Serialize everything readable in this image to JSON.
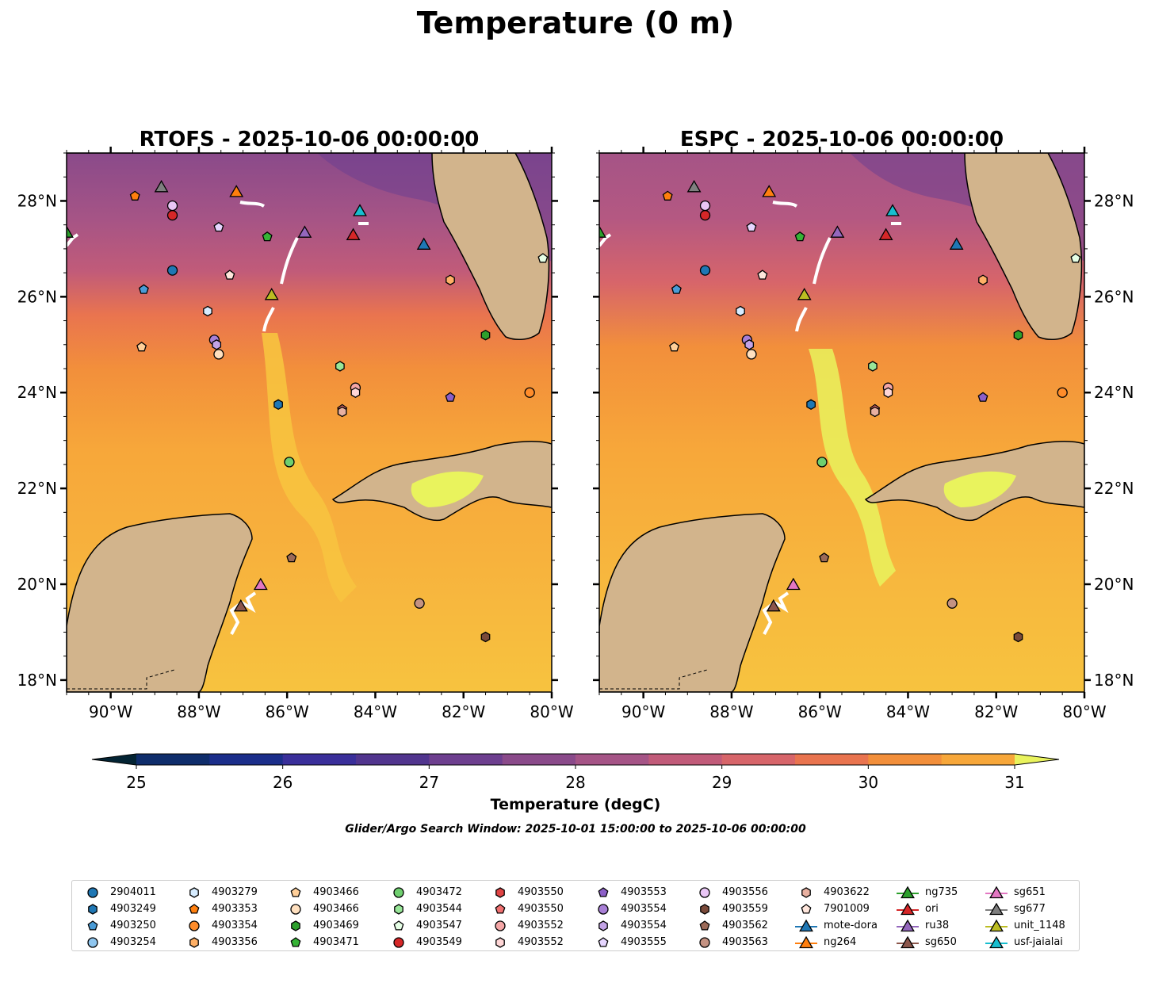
{
  "figure_title": "Temperature (0 m)",
  "search_window_text": "Glider/Argo Search Window: 2025-10-01 15:00:00 to 2025-10-06 00:00:00",
  "chart_data": {
    "type": "heatmap",
    "variable": "Temperature (0 m)",
    "colorbar": {
      "label": "Temperature (degC)",
      "min": 25,
      "max": 31,
      "step": 0.5,
      "ticks": [
        25,
        26,
        27,
        28,
        29,
        30,
        31
      ],
      "extend": "both",
      "colors": [
        "#032333",
        "#0f2d6b",
        "#1b2e8a",
        "#3a2f9a",
        "#51358e",
        "#6d3f8f",
        "#8a4a8a",
        "#a55486",
        "#c15b79",
        "#d7656a",
        "#e9744f",
        "#f28f3b",
        "#f7a73a",
        "#f7c33f",
        "#e9f35d"
      ]
    },
    "maps": [
      {
        "title": "RTOFS - 2025-10-06 00:00:00",
        "model": "RTOFS"
      },
      {
        "title": "ESPC - 2025-10-06 00:00:00",
        "model": "ESPC"
      }
    ],
    "lon_range": [
      -91.0,
      -80.0
    ],
    "lat_range": [
      17.75,
      29.0
    ],
    "lon_ticks": [
      -90,
      -88,
      -86,
      -84,
      -82,
      -80
    ],
    "lat_ticks": [
      18,
      20,
      22,
      24,
      26,
      28
    ],
    "lon_tick_labels": [
      "90°W",
      "88°W",
      "86°W",
      "84°W",
      "82°W",
      "80°W"
    ],
    "lat_tick_labels": [
      "18°N",
      "20°N",
      "22°N",
      "24°N",
      "26°N",
      "28°N"
    ],
    "argo_floats": [
      {
        "id": "2904011",
        "lon": -88.6,
        "lat": 26.55,
        "shape": "circle",
        "color": "#1f77b4"
      },
      {
        "id": "4903249",
        "lon": -86.2,
        "lat": 23.75,
        "shape": "hexagon",
        "color": "#1f77b4"
      },
      {
        "id": "4903250",
        "lon": -89.25,
        "lat": 26.15,
        "shape": "pentagon",
        "color": "#4a9bd6"
      },
      {
        "id": "4903279",
        "lon": -87.8,
        "lat": 25.7,
        "shape": "hexagon",
        "color": "#d6ecff"
      },
      {
        "id": "4903353",
        "lon": -89.45,
        "lat": 28.1,
        "shape": "pentagon",
        "color": "#ff7f0e"
      },
      {
        "id": "4903354",
        "lon": -80.5,
        "lat": 24.0,
        "shape": "circle",
        "color": "#ff8c2a"
      },
      {
        "id": "4903356",
        "lon": -82.3,
        "lat": 26.35,
        "shape": "hexagon",
        "color": "#ffb066"
      },
      {
        "id": "4903466",
        "lon": -89.3,
        "lat": 24.95,
        "shape": "pentagon",
        "color": "#ffcf99"
      },
      {
        "id": "4903466",
        "lon": -87.55,
        "lat": 24.8,
        "shape": "circle",
        "color": "#ffe0bf"
      },
      {
        "id": "4903469",
        "lon": -81.5,
        "lat": 25.2,
        "shape": "hexagon",
        "color": "#2ca02c"
      },
      {
        "id": "4903471",
        "lon": -86.45,
        "lat": 27.25,
        "shape": "pentagon",
        "color": "#36b336"
      },
      {
        "id": "4903472",
        "lon": -85.95,
        "lat": 22.55,
        "shape": "circle",
        "color": "#6fcf6f"
      },
      {
        "id": "4903544",
        "lon": -84.8,
        "lat": 24.55,
        "shape": "hexagon",
        "color": "#98e698"
      },
      {
        "id": "4903547",
        "lon": -80.2,
        "lat": 26.8,
        "shape": "pentagon",
        "color": "#e6ffe6"
      },
      {
        "id": "4903549",
        "lon": -88.6,
        "lat": 27.7,
        "shape": "circle",
        "color": "#d62728"
      },
      {
        "id": "4903550",
        "lon": -84.75,
        "lat": 23.6,
        "shape": "hexagon",
        "color": "#e04444"
      },
      {
        "id": "4903550",
        "lon": -84.75,
        "lat": 23.65,
        "shape": "pentagon",
        "color": "#f07070"
      },
      {
        "id": "4903552",
        "lon": -84.45,
        "lat": 24.1,
        "shape": "circle",
        "color": "#f4a6a6"
      },
      {
        "id": "4903552",
        "lon": -84.45,
        "lat": 24.0,
        "shape": "hexagon",
        "color": "#ffd6d6"
      },
      {
        "id": "4903553",
        "lon": -82.3,
        "lat": 23.9,
        "shape": "pentagon",
        "color": "#8c5fc7"
      },
      {
        "id": "4903554",
        "lon": -87.65,
        "lat": 25.1,
        "shape": "circle",
        "color": "#a87fd6"
      },
      {
        "id": "4903554",
        "lon": -87.6,
        "lat": 25.0,
        "shape": "hexagon",
        "color": "#c3a3e6"
      },
      {
        "id": "4903555",
        "lon": -87.55,
        "lat": 27.45,
        "shape": "pentagon",
        "color": "#e6d6ff"
      },
      {
        "id": "4903556",
        "lon": -88.6,
        "lat": 27.9,
        "shape": "circle",
        "color": "#e9c6f5"
      },
      {
        "id": "4903559",
        "lon": -81.5,
        "lat": 18.9,
        "shape": "hexagon",
        "color": "#7a4a3a"
      },
      {
        "id": "4903562",
        "lon": -85.9,
        "lat": 20.55,
        "shape": "pentagon",
        "color": "#9c6a58"
      },
      {
        "id": "4903563",
        "lon": -83.0,
        "lat": 19.6,
        "shape": "circle",
        "color": "#c49282"
      },
      {
        "id": "4903622",
        "lon": -84.75,
        "lat": 23.6,
        "shape": "hexagon",
        "color": "#e8b0a0"
      },
      {
        "id": "7901009",
        "lon": -87.3,
        "lat": 26.45,
        "shape": "pentagon",
        "color": "#ffe6dc"
      }
    ],
    "gliders": [
      {
        "id": "mote-dora",
        "lon": -82.9,
        "lat": 27.1,
        "color": "#1f77b4"
      },
      {
        "id": "ng264",
        "lon": -87.15,
        "lat": 28.2,
        "color": "#ff7f0e"
      },
      {
        "id": "ng735",
        "lon": -91.0,
        "lat": 27.35,
        "color": "#2ca02c"
      },
      {
        "id": "ori",
        "lon": -84.5,
        "lat": 27.3,
        "color": "#d62728"
      },
      {
        "id": "ru38",
        "lon": -85.6,
        "lat": 27.35,
        "color": "#9467bd"
      },
      {
        "id": "sg650",
        "lon": -87.05,
        "lat": 19.55,
        "color": "#8c564b"
      },
      {
        "id": "sg651",
        "lon": -86.6,
        "lat": 20.0,
        "color": "#e377c2"
      },
      {
        "id": "sg677",
        "lon": -88.85,
        "lat": 28.3,
        "color": "#7f7f7f"
      },
      {
        "id": "unit_1148",
        "lon": -86.35,
        "lat": 26.05,
        "color": "#bcbd22"
      },
      {
        "id": "usf-jaialai",
        "lon": -84.35,
        "lat": 27.8,
        "color": "#17becf"
      }
    ]
  },
  "legend": {
    "columns": [
      [
        {
          "label": "2904011",
          "shape": "circle",
          "color": "#1f77b4"
        },
        {
          "label": "4903249",
          "shape": "hexagon",
          "color": "#1f77b4"
        },
        {
          "label": "4903250",
          "shape": "pentagon",
          "color": "#4a9bd6"
        },
        {
          "label": "4903254",
          "shape": "circle",
          "color": "#8fc6ef"
        }
      ],
      [
        {
          "label": "4903279",
          "shape": "hexagon",
          "color": "#d6ecff"
        },
        {
          "label": "4903353",
          "shape": "pentagon",
          "color": "#ff7f0e"
        },
        {
          "label": "4903354",
          "shape": "circle",
          "color": "#ff8c2a"
        },
        {
          "label": "4903356",
          "shape": "hexagon",
          "color": "#ffb066"
        }
      ],
      [
        {
          "label": "4903466",
          "shape": "pentagon",
          "color": "#ffcf99"
        },
        {
          "label": "4903466",
          "shape": "circle",
          "color": "#ffe0bf"
        },
        {
          "label": "4903469",
          "shape": "hexagon",
          "color": "#2ca02c"
        },
        {
          "label": "4903471",
          "shape": "pentagon",
          "color": "#36b336"
        }
      ],
      [
        {
          "label": "4903472",
          "shape": "circle",
          "color": "#6fcf6f"
        },
        {
          "label": "4903544",
          "shape": "hexagon",
          "color": "#98e698"
        },
        {
          "label": "4903547",
          "shape": "pentagon",
          "color": "#e6ffe6"
        },
        {
          "label": "4903549",
          "shape": "circle",
          "color": "#d62728"
        }
      ],
      [
        {
          "label": "4903550",
          "shape": "hexagon",
          "color": "#e04444"
        },
        {
          "label": "4903550",
          "shape": "pentagon",
          "color": "#f07070"
        },
        {
          "label": "4903552",
          "shape": "circle",
          "color": "#f4a6a6"
        },
        {
          "label": "4903552",
          "shape": "hexagon",
          "color": "#ffd6d6"
        }
      ],
      [
        {
          "label": "4903553",
          "shape": "pentagon",
          "color": "#8c5fc7"
        },
        {
          "label": "4903554",
          "shape": "circle",
          "color": "#a87fd6"
        },
        {
          "label": "4903554",
          "shape": "hexagon",
          "color": "#c3a3e6"
        },
        {
          "label": "4903555",
          "shape": "pentagon",
          "color": "#e6d6ff"
        }
      ],
      [
        {
          "label": "4903556",
          "shape": "circle",
          "color": "#e9c6f5"
        },
        {
          "label": "4903559",
          "shape": "hexagon",
          "color": "#7a4a3a"
        },
        {
          "label": "4903562",
          "shape": "pentagon",
          "color": "#9c6a58"
        },
        {
          "label": "4903563",
          "shape": "circle",
          "color": "#c49282"
        }
      ],
      [
        {
          "label": "4903622",
          "shape": "hexagon",
          "color": "#e8b0a0"
        },
        {
          "label": "7901009",
          "shape": "pentagon",
          "color": "#ffe6dc"
        },
        {
          "label": "mote-dora",
          "shape": "glider",
          "color": "#1f77b4"
        },
        {
          "label": "ng264",
          "shape": "glider",
          "color": "#ff7f0e"
        }
      ],
      [
        {
          "label": "ng735",
          "shape": "glider",
          "color": "#2ca02c"
        },
        {
          "label": "ori",
          "shape": "glider",
          "color": "#d62728"
        },
        {
          "label": "ru38",
          "shape": "glider",
          "color": "#9467bd"
        },
        {
          "label": "sg650",
          "shape": "glider",
          "color": "#8c564b"
        }
      ],
      [
        {
          "label": "sg651",
          "shape": "glider",
          "color": "#e377c2"
        },
        {
          "label": "sg677",
          "shape": "glider",
          "color": "#7f7f7f"
        },
        {
          "label": "unit_1148",
          "shape": "glider",
          "color": "#bcbd22"
        },
        {
          "label": "usf-jaialai",
          "shape": "glider",
          "color": "#17becf"
        }
      ]
    ]
  }
}
